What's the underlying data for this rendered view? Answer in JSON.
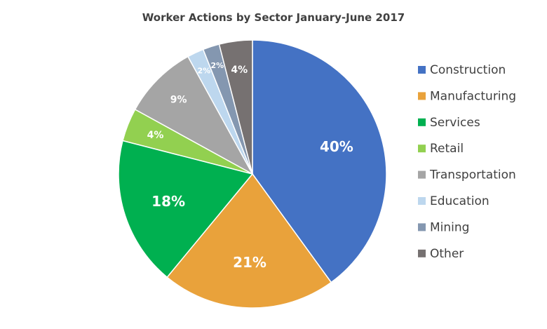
{
  "chart_data": {
    "type": "pie",
    "title": "Worker Actions by Sector January-June  2017",
    "legend_position": "right",
    "slices": [
      {
        "label": "Construction",
        "value": 40,
        "value_label": "40%",
        "color": "#4472C4"
      },
      {
        "label": "Manufacturing",
        "value": 21,
        "value_label": "21%",
        "color": "#E9A23B"
      },
      {
        "label": "Services",
        "value": 18,
        "value_label": "18%",
        "color": "#00B050"
      },
      {
        "label": "Retail",
        "value": 4,
        "value_label": "4%",
        "color": "#92D050"
      },
      {
        "label": "Transportation",
        "value": 9,
        "value_label": "9%",
        "color": "#A5A5A5"
      },
      {
        "label": "Education",
        "value": 2,
        "value_label": "2%",
        "color": "#BDD7EE"
      },
      {
        "label": "Mining",
        "value": 2,
        "value_label": "2%",
        "color": "#8497B0"
      },
      {
        "label": "Other",
        "value": 4,
        "value_label": "4%",
        "color": "#767171"
      }
    ]
  }
}
